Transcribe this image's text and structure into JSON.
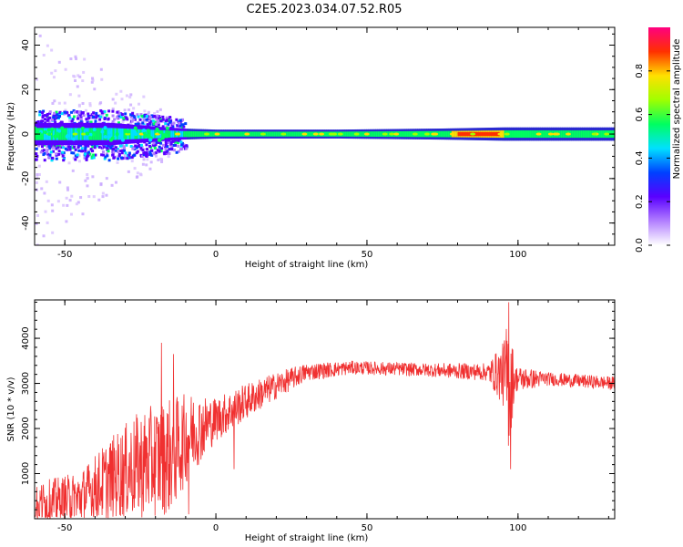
{
  "title": "C2E5.2023.034.07.52.R05",
  "chart_data": [
    {
      "type": "heatmap",
      "xlabel": "Height of straight line (km)",
      "ylabel": "Frequency (Hz)",
      "xlim": [
        -60,
        132
      ],
      "ylim": [
        -50,
        48
      ],
      "xticks": [
        "-50",
        "0",
        "50",
        "100"
      ],
      "xtick_values": [
        -50,
        0,
        50,
        100
      ],
      "yticks": [
        "40",
        "20",
        "0",
        "-20",
        "-40"
      ],
      "ytick_values": [
        40,
        20,
        0,
        -20,
        -40
      ],
      "colorbar": {
        "label": "Normalized spectral amplitude",
        "ticks": [
          "0.0",
          "0.2",
          "0.4",
          "0.6",
          "0.8"
        ],
        "tick_values": [
          0,
          0.2,
          0.4,
          0.6,
          0.8
        ],
        "range": [
          0,
          1
        ],
        "colors": [
          "#ffffff",
          "#b27fff",
          "#5a00ff",
          "#0040ff",
          "#00e0ff",
          "#00ff60",
          "#a0ff00",
          "#ffe000",
          "#ff3000",
          "#ff0080"
        ]
      },
      "band": {
        "center_hz": 0,
        "halfwidth_hz": [
          {
            "x": -60,
            "w": 5
          },
          {
            "x": -35,
            "w": 5
          },
          {
            "x": -12,
            "w": 2.5
          },
          {
            "x": 0,
            "w": 2
          },
          {
            "x": 40,
            "w": 2
          },
          {
            "x": 75,
            "w": 2.5
          },
          {
            "x": 95,
            "w": 3
          },
          {
            "x": 132,
            "w": 3
          }
        ],
        "peak_region_km": [
          78,
          95
        ]
      }
    },
    {
      "type": "line",
      "xlabel": "Height of straight line (km)",
      "ylabel": "SNR (10 * v/v)",
      "xlim": [
        -60,
        132
      ],
      "ylim": [
        0,
        4850
      ],
      "xticks": [
        "-50",
        "0",
        "50",
        "100"
      ],
      "xtick_values": [
        -50,
        0,
        50,
        100
      ],
      "yticks": [
        "1000",
        "2000",
        "3000",
        "4000"
      ],
      "ytick_values": [
        1000,
        2000,
        3000,
        4000
      ],
      "color": "#f03030",
      "envelope": [
        {
          "x": -60,
          "mean": 300,
          "amp": 500
        },
        {
          "x": -45,
          "mean": 450,
          "amp": 600
        },
        {
          "x": -35,
          "mean": 900,
          "amp": 900
        },
        {
          "x": -25,
          "mean": 1200,
          "amp": 1200
        },
        {
          "x": -15,
          "mean": 1400,
          "amp": 1300
        },
        {
          "x": -8,
          "mean": 1900,
          "amp": 900
        },
        {
          "x": 0,
          "mean": 2200,
          "amp": 500
        },
        {
          "x": 10,
          "mean": 2600,
          "amp": 400
        },
        {
          "x": 20,
          "mean": 2950,
          "amp": 300
        },
        {
          "x": 30,
          "mean": 3250,
          "amp": 200
        },
        {
          "x": 45,
          "mean": 3350,
          "amp": 150
        },
        {
          "x": 70,
          "mean": 3300,
          "amp": 150
        },
        {
          "x": 90,
          "mean": 3250,
          "amp": 200
        },
        {
          "x": 95,
          "mean": 3200,
          "amp": 700
        },
        {
          "x": 97,
          "mean": 3000,
          "amp": 1600
        },
        {
          "x": 99,
          "mean": 3100,
          "amp": 300
        },
        {
          "x": 110,
          "mean": 3100,
          "amp": 150
        },
        {
          "x": 132,
          "mean": 3000,
          "amp": 150
        }
      ],
      "spikes": [
        {
          "x": -18,
          "y": 3900
        },
        {
          "x": -14,
          "y": 3650
        },
        {
          "x": -9,
          "y": 100
        },
        {
          "x": 6,
          "y": 1100
        },
        {
          "x": 97,
          "y": 4800
        },
        {
          "x": 97.5,
          "y": 1100
        }
      ]
    }
  ]
}
